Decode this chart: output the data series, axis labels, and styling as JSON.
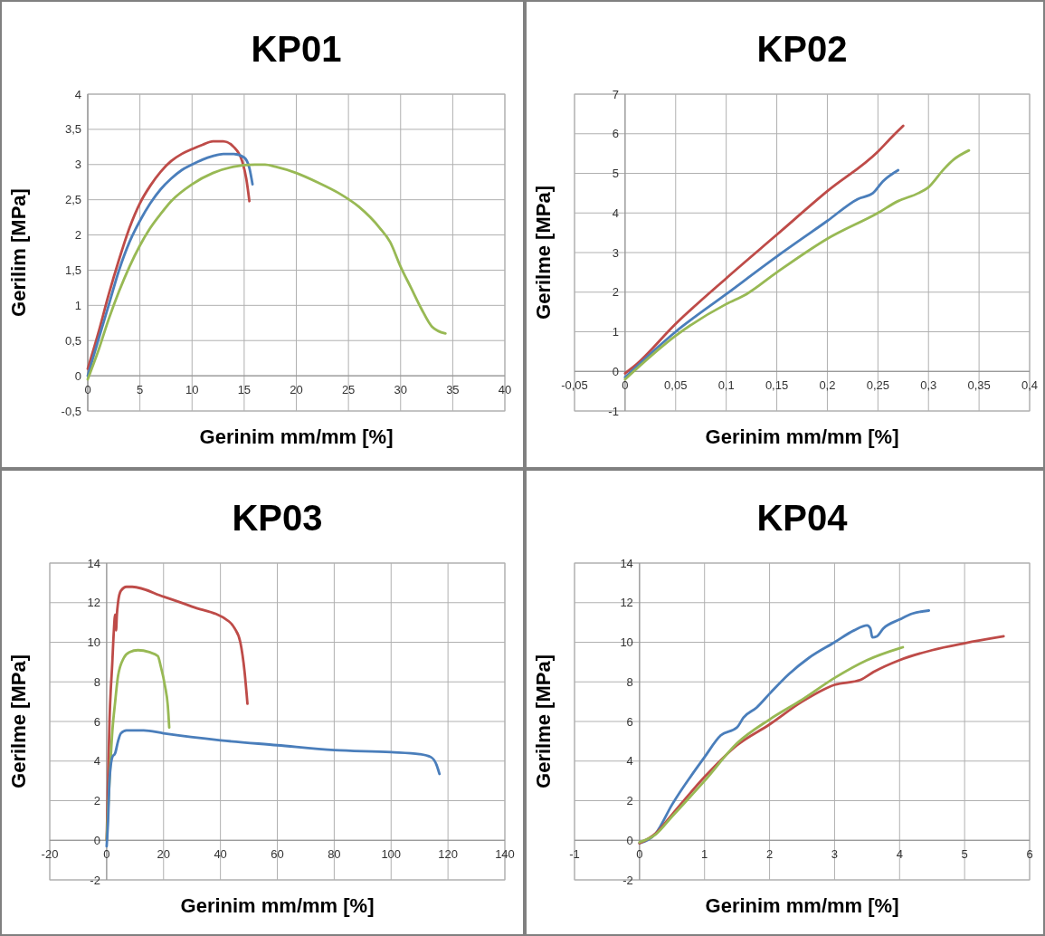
{
  "chart_data": [
    {
      "type": "line",
      "title": "KP01",
      "xlabel": "Gerinim mm/mm [%]",
      "ylabel": "Gerilim [MPa]",
      "xlim": [
        0,
        40
      ],
      "xticks": [
        0,
        5,
        10,
        15,
        20,
        25,
        30,
        35,
        40
      ],
      "ylim": [
        -0.5,
        4
      ],
      "yticks": [
        {
          "value": -0.5,
          "label": "-0,5"
        },
        0,
        {
          "value": 0.5,
          "label": "0,5"
        },
        1,
        {
          "value": 1.5,
          "label": "1,5"
        },
        2,
        {
          "value": 2.5,
          "label": "2,5"
        },
        3,
        {
          "value": 3.5,
          "label": "3,5"
        },
        4
      ],
      "grid": true,
      "marker": "none",
      "line_style": "solid",
      "series": [
        {
          "color": "#be4b48",
          "x": [
            0,
            1,
            2,
            3,
            4,
            5,
            6,
            7,
            8,
            9,
            10,
            11,
            12,
            13,
            14,
            14.8,
            15.2,
            15.5
          ],
          "values": [
            0.1,
            0.6,
            1.15,
            1.65,
            2.1,
            2.45,
            2.7,
            2.9,
            3.05,
            3.15,
            3.22,
            3.28,
            3.33,
            3.33,
            3.25,
            3.05,
            2.8,
            2.48
          ]
        },
        {
          "color": "#4a7ebb",
          "x": [
            0,
            1,
            2,
            3,
            4,
            5,
            6,
            7,
            8,
            9,
            10,
            11,
            12,
            13,
            14,
            15,
            15.5,
            15.8
          ],
          "values": [
            0,
            0.5,
            1.0,
            1.5,
            1.9,
            2.2,
            2.45,
            2.65,
            2.8,
            2.92,
            3.0,
            3.07,
            3.12,
            3.15,
            3.15,
            3.1,
            2.95,
            2.72
          ]
        },
        {
          "color": "#98b954",
          "x": [
            0,
            1,
            2,
            3,
            4,
            5,
            6,
            7,
            8,
            10,
            12,
            14,
            16,
            17,
            18,
            20,
            22,
            24,
            26,
            28,
            29,
            30,
            31,
            32,
            33,
            34.3
          ],
          "values": [
            -0.05,
            0.35,
            0.8,
            1.2,
            1.55,
            1.85,
            2.1,
            2.3,
            2.48,
            2.72,
            2.88,
            2.97,
            3.0,
            3.0,
            2.97,
            2.88,
            2.75,
            2.6,
            2.4,
            2.1,
            1.9,
            1.55,
            1.25,
            0.95,
            0.7,
            0.6
          ]
        }
      ]
    },
    {
      "type": "line",
      "title": "KP02",
      "xlabel": "Gerinim mm/mm [%]",
      "ylabel": "Gerilme [MPa]",
      "xlim": [
        -0.05,
        0.4
      ],
      "xticks": [
        {
          "value": -0.05,
          "label": "-0,05"
        },
        0,
        {
          "value": 0.05,
          "label": "0,05"
        },
        {
          "value": 0.1,
          "label": "0,1"
        },
        {
          "value": 0.15,
          "label": "0,15"
        },
        {
          "value": 0.2,
          "label": "0,2"
        },
        {
          "value": 0.25,
          "label": "0,25"
        },
        {
          "value": 0.3,
          "label": "0,3"
        },
        {
          "value": 0.35,
          "label": "0,35"
        },
        {
          "value": 0.4,
          "label": "0,4"
        }
      ],
      "ylim": [
        -1,
        7
      ],
      "yticks": [
        -1,
        0,
        1,
        2,
        3,
        4,
        5,
        6,
        7
      ],
      "grid": true,
      "marker": "none",
      "line_style": "solid",
      "series": [
        {
          "color": "#be4b48",
          "x": [
            0,
            0.01,
            0.05,
            0.1,
            0.15,
            0.2,
            0.25,
            0.265,
            0.275
          ],
          "values": [
            -0.05,
            0.15,
            1.2,
            2.35,
            3.45,
            4.55,
            5.55,
            5.95,
            6.2
          ]
        },
        {
          "color": "#4a7ebb",
          "x": [
            0,
            0.05,
            0.1,
            0.15,
            0.2,
            0.23,
            0.245,
            0.255,
            0.27
          ],
          "values": [
            -0.15,
            1.0,
            1.95,
            2.9,
            3.8,
            4.35,
            4.5,
            4.8,
            5.08
          ]
        },
        {
          "color": "#98b954",
          "x": [
            0,
            0.05,
            0.1,
            0.12,
            0.15,
            0.2,
            0.25,
            0.27,
            0.29,
            0.3,
            0.315,
            0.325,
            0.34
          ],
          "values": [
            -0.2,
            0.9,
            1.7,
            1.95,
            2.5,
            3.35,
            4.0,
            4.3,
            4.5,
            4.65,
            5.1,
            5.35,
            5.58
          ]
        }
      ]
    },
    {
      "type": "line",
      "title": "KP03",
      "xlabel": "Gerinim mm/mm [%]",
      "ylabel": "Gerilme [MPa]",
      "xlim": [
        -20,
        140
      ],
      "xticks": [
        -20,
        0,
        20,
        40,
        60,
        80,
        100,
        120,
        140
      ],
      "ylim": [
        -2,
        14
      ],
      "yticks": [
        -2,
        0,
        2,
        4,
        6,
        8,
        10,
        12,
        14
      ],
      "grid": true,
      "marker": "none",
      "line_style": "solid",
      "series": [
        {
          "color": "#be4b48",
          "x": [
            0,
            0.5,
            1,
            2,
            2.5,
            3,
            3.3,
            3.6,
            4,
            5,
            7,
            9,
            20,
            30,
            43,
            45,
            47,
            48.5,
            49.5
          ],
          "values": [
            0,
            3,
            6,
            9,
            10.5,
            11.4,
            10.6,
            11.4,
            12,
            12.6,
            12.8,
            12.8,
            12.3,
            11.8,
            11.05,
            10.7,
            10,
            8.5,
            6.9
          ]
        },
        {
          "color": "#98b954",
          "x": [
            0,
            1,
            2,
            3,
            4,
            6,
            8,
            11,
            15,
            18,
            19,
            20.5,
            21.5,
            22
          ],
          "values": [
            0,
            3,
            5.5,
            7,
            8.3,
            9.2,
            9.5,
            9.6,
            9.5,
            9.3,
            8.8,
            7.8,
            6.8,
            5.7
          ]
        },
        {
          "color": "#4a7ebb",
          "x": [
            0,
            0.5,
            1,
            2,
            3,
            4,
            5,
            7,
            13,
            20,
            40,
            60,
            80,
            100,
            110,
            114,
            116,
            117
          ],
          "values": [
            -0.3,
            1,
            3,
            4.2,
            4.4,
            5,
            5.4,
            5.55,
            5.55,
            5.4,
            5.05,
            4.8,
            4.55,
            4.45,
            4.35,
            4.2,
            3.8,
            3.35
          ]
        }
      ]
    },
    {
      "type": "line",
      "title": "KP04",
      "xlabel": "Gerinim mm/mm [%]",
      "ylabel": "Gerilme [MPa]",
      "xlim": [
        -1,
        6
      ],
      "xticks": [
        -1,
        0,
        1,
        2,
        3,
        4,
        5,
        6
      ],
      "ylim": [
        -2,
        14
      ],
      "yticks": [
        -2,
        0,
        2,
        4,
        6,
        8,
        10,
        12,
        14
      ],
      "grid": true,
      "marker": "none",
      "line_style": "solid",
      "series": [
        {
          "color": "#4a7ebb",
          "x": [
            0,
            0.25,
            0.5,
            1,
            1.25,
            1.5,
            1.6,
            1.8,
            2,
            2.3,
            2.6,
            3,
            3.3,
            3.5,
            3.55,
            3.58,
            3.65,
            3.75,
            4,
            4.2,
            4.45
          ],
          "values": [
            -0.15,
            0.35,
            1.8,
            4.2,
            5.3,
            5.7,
            6.2,
            6.7,
            7.4,
            8.4,
            9.2,
            10.0,
            10.6,
            10.85,
            10.7,
            10.25,
            10.3,
            10.7,
            11.15,
            11.45,
            11.6
          ]
        },
        {
          "color": "#be4b48",
          "x": [
            0,
            0.25,
            0.5,
            1,
            1.5,
            2,
            2.5,
            3,
            3.4,
            3.6,
            4,
            4.5,
            5,
            5.6
          ],
          "values": [
            -0.15,
            0.35,
            1.3,
            3.2,
            4.8,
            5.85,
            7.0,
            7.85,
            8.1,
            8.5,
            9.1,
            9.6,
            9.95,
            10.3
          ]
        },
        {
          "color": "#98b954",
          "x": [
            0,
            0.25,
            0.5,
            1,
            1.5,
            2,
            2.5,
            3,
            3.5,
            4,
            4.05
          ],
          "values": [
            -0.1,
            0.3,
            1.2,
            3.0,
            4.9,
            6.1,
            7.1,
            8.2,
            9.1,
            9.7,
            9.75
          ]
        }
      ]
    }
  ]
}
